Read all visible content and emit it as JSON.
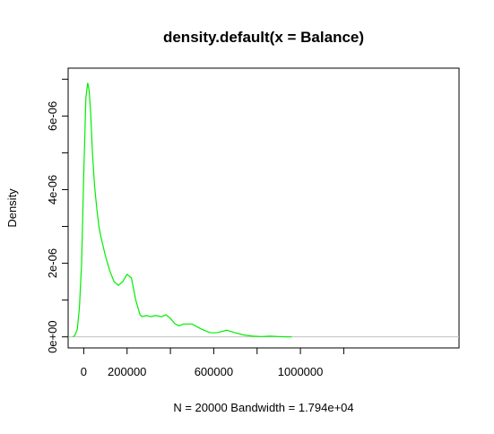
{
  "chart_data": {
    "type": "line",
    "title": "density.default(x = Balance)",
    "xlabel": "N = 20000   Bandwidth = 1.794e+04",
    "ylabel": "Density",
    "xlim": [
      -72000,
      1732000
    ],
    "ylim": [
      -3e-07,
      7.3e-06
    ],
    "x_ticks": [
      0,
      200000,
      600000,
      1000000
    ],
    "x_tick_labels": [
      "0",
      "200000",
      "600000",
      "1000000"
    ],
    "x_unlabeled_ticks": [
      400000,
      800000,
      1200000
    ],
    "y_ticks": [
      0,
      2e-06,
      4e-06,
      6e-06
    ],
    "y_tick_labels": [
      "0e+00",
      "2e-06",
      "4e-06",
      "6e-06"
    ],
    "y_unlabeled_ticks": [
      1e-06,
      3e-06,
      5e-06,
      7e-06
    ],
    "zero_line": true,
    "grid": false,
    "line_color": "#00ee00",
    "baseline_color": "#c0c0c0",
    "series": [
      {
        "x": [
          -50000,
          -40000,
          -30000,
          -20000,
          -10000,
          0,
          10000,
          18000,
          25000,
          32000,
          40000,
          50000,
          60000,
          70000,
          80000,
          100000,
          120000,
          140000,
          160000,
          180000,
          200000,
          220000,
          230000,
          240000,
          250000,
          260000,
          270000,
          290000,
          310000,
          330000,
          360000,
          380000,
          400000,
          420000,
          440000,
          460000,
          500000,
          540000,
          580000,
          600000,
          620000,
          660000,
          700000,
          740000,
          780000,
          820000,
          860000,
          900000,
          940000,
          960000
        ],
        "y": [
          0,
          5e-08,
          2e-07,
          8e-07,
          2e-06,
          4.4e-06,
          6.5e-06,
          6.9e-06,
          6.7e-06,
          6.1e-06,
          5e-06,
          4.1e-06,
          3.5e-06,
          3e-06,
          2.7e-06,
          2.2e-06,
          1.8e-06,
          1.5e-06,
          1.4e-06,
          1.5e-06,
          1.7e-06,
          1.6e-06,
          1.3e-06,
          1e-06,
          8e-07,
          6e-07,
          5.5e-07,
          5.8e-07,
          5.5e-07,
          5.8e-07,
          5.5e-07,
          6e-07,
          5e-07,
          3.6e-07,
          3e-07,
          3.5e-07,
          3.5e-07,
          2.2e-07,
          1.2e-07,
          1.1e-07,
          1.2e-07,
          1.8e-07,
          1.1e-07,
          5e-08,
          2e-08,
          1e-08,
          2e-08,
          1e-08,
          0,
          0
        ]
      }
    ]
  }
}
